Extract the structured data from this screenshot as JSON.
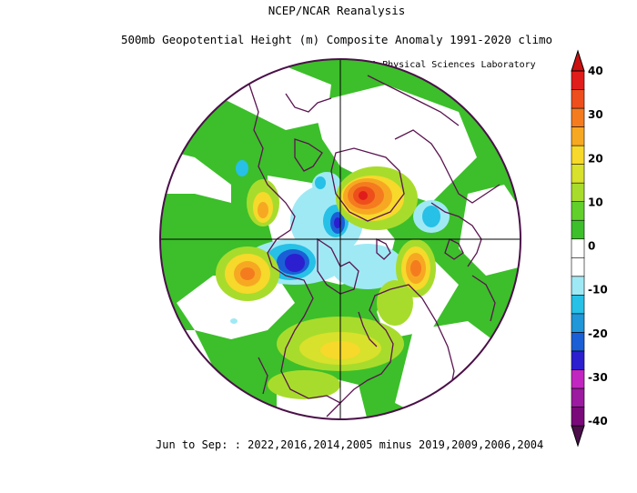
{
  "title": {
    "line1": "NCEP/NCAR Reanalysis",
    "line2": "500mb Geopotential Height (m) Composite Anomaly 1991-2020 climo",
    "credit": "NOAA Physical Sciences Laboratory"
  },
  "footer": "Jun to Sep: : 2022,2016,2014,2005 minus 2019,2009,2006,2004",
  "colorbar": {
    "labels": [
      "40",
      "30",
      "20",
      "10",
      "0",
      "-10",
      "-20",
      "-30",
      "-40"
    ],
    "colors": [
      "#7a0a7a",
      "#9c1aa0",
      "#c226c0",
      "#2b1fcf",
      "#1a5fd6",
      "#1f97d8",
      "#27c0e6",
      "#9fe9f5",
      "#ffffff",
      "#ffffff",
      "#3cbf2a",
      "#62d02b",
      "#a8dc2c",
      "#d8e12b",
      "#f6d92b",
      "#f7a823",
      "#f47c1f",
      "#ee4e1c",
      "#e11d1b"
    ]
  }
}
